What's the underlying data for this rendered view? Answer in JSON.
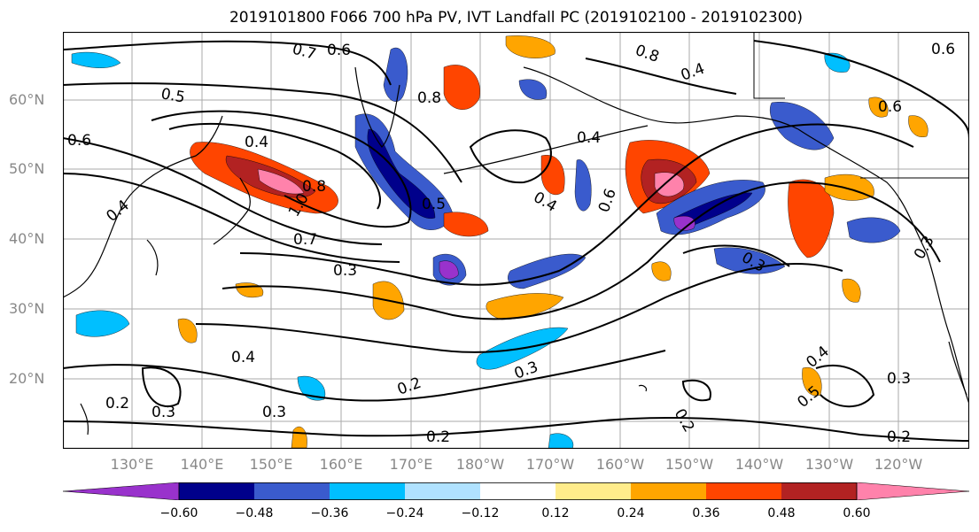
{
  "title": "2019101800 F066 700 hPa PV, IVT Landfall PC (2019102100 - 2019102300)",
  "map": {
    "lat_labels": [
      "60°N",
      "50°N",
      "40°N",
      "30°N",
      "20°N"
    ],
    "lon_labels": [
      "130°E",
      "140°E",
      "150°E",
      "160°E",
      "170°E",
      "180°W",
      "170°W",
      "160°W",
      "150°W",
      "140°W",
      "130°W",
      "120°W"
    ],
    "contour_labels": [
      "0.7",
      "0.6",
      "0.5",
      "0.6",
      "0.4",
      "0.4",
      "0.8",
      "0.8",
      "0.4",
      "0.6",
      "0.6",
      "0.4",
      "0.7",
      "0.3",
      "0.4",
      "0.3",
      "0.2",
      "0.3",
      "0.2",
      "0.2",
      "0.3",
      "0.2",
      "0.3",
      "0.4",
      "0.5",
      "0.3",
      "0.2",
      "0.3",
      "0.4",
      "0.5",
      "0.6",
      "1.0",
      "0.8"
    ]
  },
  "colorbar": {
    "ticks": [
      "−0.60",
      "−0.48",
      "−0.36",
      "−0.24",
      "−0.12",
      "0.12",
      "0.24",
      "0.36",
      "0.48",
      "0.60"
    ],
    "colors": [
      "#9932CC",
      "#00008B",
      "#3A5BCD",
      "#00BFFF",
      "#B0E2FF",
      "#FFFFFF",
      "#FFEC8B",
      "#FFA500",
      "#FF4500",
      "#B22222",
      "#FF82AB"
    ]
  }
}
